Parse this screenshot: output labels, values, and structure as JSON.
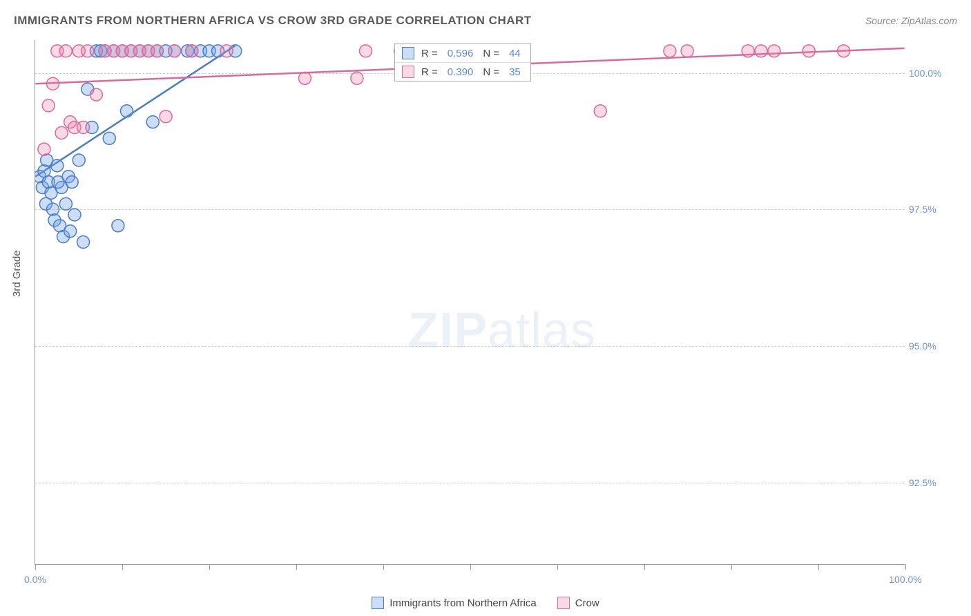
{
  "title": "IMMIGRANTS FROM NORTHERN AFRICA VS CROW 3RD GRADE CORRELATION CHART",
  "source": "Source: ZipAtlas.com",
  "y_axis_title": "3rd Grade",
  "watermark": {
    "part1": "ZIP",
    "part2": "atlas"
  },
  "colors": {
    "series_a_fill": "rgba(110,160,225,0.35)",
    "series_a_stroke": "#4a7bc8",
    "series_b_fill": "rgba(235,130,170,0.30)",
    "series_b_stroke": "#d96a9a",
    "axis": "#999",
    "grid": "#ccc",
    "tick_label": "#6b8fd4",
    "text": "#555",
    "legend_val": "#5b8ad6"
  },
  "chart": {
    "type": "scatter",
    "xlim": [
      0,
      100
    ],
    "ylim": [
      91.0,
      100.6
    ],
    "x_ticks": [
      0,
      10,
      20,
      30,
      40,
      50,
      60,
      70,
      80,
      90,
      100
    ],
    "x_tick_labels_shown": {
      "0": "0.0%",
      "100": "100.0%"
    },
    "y_ticks": [
      92.5,
      95.0,
      97.5,
      100.0
    ],
    "y_tick_labels": [
      "92.5%",
      "95.0%",
      "97.5%",
      "100.0%"
    ],
    "marker_radius": 9,
    "marker_stroke_width": 1.5,
    "trend_line_width": 2.5
  },
  "series": [
    {
      "id": "a",
      "label": "Immigrants from Northern Africa",
      "color_fill": "rgba(110,160,225,0.35)",
      "color_stroke": "#4a7bc8",
      "r": "0.596",
      "n": "44",
      "trend": {
        "x1": 0,
        "y1": 98.1,
        "x2": 23,
        "y2": 100.5
      },
      "points": [
        [
          0.5,
          98.1
        ],
        [
          0.8,
          97.9
        ],
        [
          1.0,
          98.2
        ],
        [
          1.2,
          97.6
        ],
        [
          1.5,
          98.0
        ],
        [
          1.8,
          97.8
        ],
        [
          2.0,
          97.5
        ],
        [
          2.2,
          97.3
        ],
        [
          2.5,
          98.3
        ],
        [
          2.8,
          97.2
        ],
        [
          3.0,
          97.9
        ],
        [
          3.2,
          97.0
        ],
        [
          3.5,
          97.6
        ],
        [
          4.0,
          97.1
        ],
        [
          4.5,
          97.4
        ],
        [
          5.0,
          98.4
        ],
        [
          5.5,
          96.9
        ],
        [
          6.0,
          99.7
        ],
        [
          6.5,
          99.0
        ],
        [
          7.0,
          100.4
        ],
        [
          7.5,
          100.4
        ],
        [
          8.0,
          100.4
        ],
        [
          8.5,
          98.8
        ],
        [
          9.0,
          100.4
        ],
        [
          9.5,
          97.2
        ],
        [
          10.0,
          100.4
        ],
        [
          10.5,
          99.3
        ],
        [
          11.0,
          100.4
        ],
        [
          12.0,
          100.4
        ],
        [
          13.0,
          100.4
        ],
        [
          13.5,
          99.1
        ],
        [
          14.0,
          100.4
        ],
        [
          15.0,
          100.4
        ],
        [
          16.0,
          100.4
        ],
        [
          17.5,
          100.4
        ],
        [
          18.0,
          100.4
        ],
        [
          19.0,
          100.4
        ],
        [
          20.0,
          100.4
        ],
        [
          21.0,
          100.4
        ],
        [
          23.0,
          100.4
        ],
        [
          3.8,
          98.1
        ],
        [
          4.2,
          98.0
        ],
        [
          1.3,
          98.4
        ],
        [
          2.6,
          98.0
        ]
      ]
    },
    {
      "id": "b",
      "label": "Crow",
      "color_fill": "rgba(235,130,170,0.30)",
      "color_stroke": "#d96a9a",
      "r": "0.390",
      "n": "35",
      "trend": {
        "x1": 0,
        "y1": 99.8,
        "x2": 100,
        "y2": 100.45
      },
      "points": [
        [
          1.0,
          98.6
        ],
        [
          2.0,
          99.8
        ],
        [
          3.0,
          98.9
        ],
        [
          4.0,
          99.1
        ],
        [
          5.0,
          100.4
        ],
        [
          6.0,
          100.4
        ],
        [
          7.0,
          99.6
        ],
        [
          8.0,
          100.4
        ],
        [
          9.0,
          100.4
        ],
        [
          10.0,
          100.4
        ],
        [
          11.0,
          100.4
        ],
        [
          12.0,
          100.4
        ],
        [
          13.0,
          100.4
        ],
        [
          14.0,
          100.4
        ],
        [
          15.0,
          99.2
        ],
        [
          16.0,
          100.4
        ],
        [
          18.0,
          100.4
        ],
        [
          22.0,
          100.4
        ],
        [
          31.0,
          99.9
        ],
        [
          37.0,
          99.9
        ],
        [
          38.0,
          100.4
        ],
        [
          42.0,
          100.4
        ],
        [
          65.0,
          99.3
        ],
        [
          73.0,
          100.4
        ],
        [
          75.0,
          100.4
        ],
        [
          82.0,
          100.4
        ],
        [
          83.5,
          100.4
        ],
        [
          85.0,
          100.4
        ],
        [
          89.0,
          100.4
        ],
        [
          93.0,
          100.4
        ],
        [
          1.5,
          99.4
        ],
        [
          2.5,
          100.4
        ],
        [
          3.5,
          100.4
        ],
        [
          4.5,
          99.0
        ],
        [
          5.5,
          99.0
        ]
      ]
    }
  ],
  "legend_top_label_r": "R =",
  "legend_top_label_n": "N ="
}
